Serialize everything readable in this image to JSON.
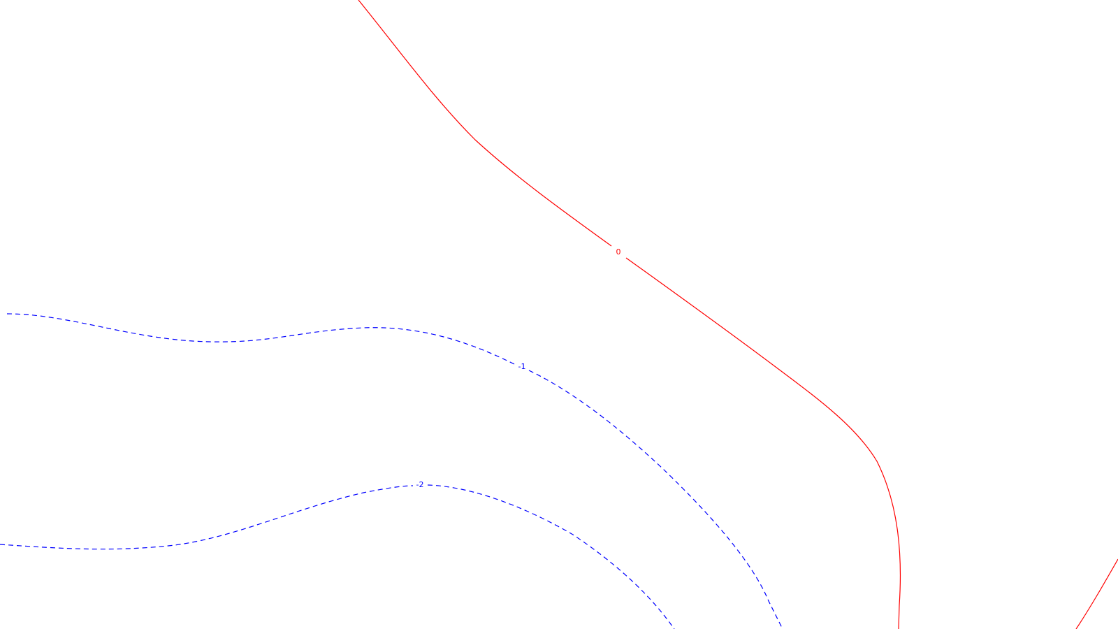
{
  "chart_data": {
    "type": "contour",
    "title": "",
    "xlabel": "",
    "ylabel": "",
    "grid": false,
    "legend": "none",
    "levels": [
      {
        "value": 0,
        "label": "0",
        "color": "#ff0000",
        "style": "solid"
      },
      {
        "value": -1,
        "label": "-1",
        "color": "#0000ff",
        "style": "dashed"
      },
      {
        "value": -2,
        "label": "-2",
        "color": "#0000ff",
        "style": "dashed"
      }
    ]
  }
}
